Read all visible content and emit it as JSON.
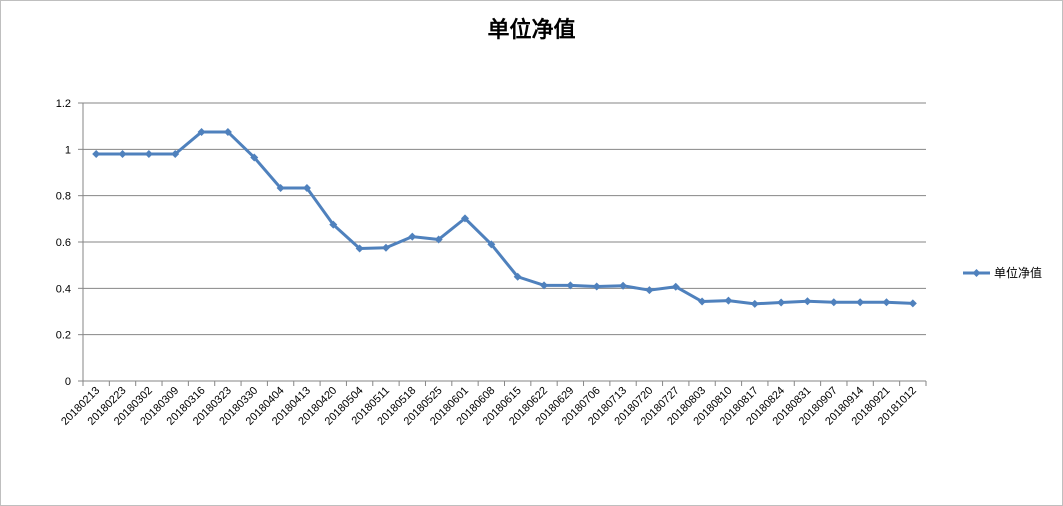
{
  "chart_data": {
    "type": "line",
    "title": "单位净值",
    "xlabel": "",
    "ylabel": "",
    "ylim": [
      0,
      1.2
    ],
    "yticks": [
      "0",
      "0.2",
      "0.4",
      "0.6",
      "0.8",
      "1",
      "1.2"
    ],
    "grid": true,
    "legend_position": "right",
    "categories": [
      "20180213",
      "20180223",
      "20180302",
      "20180309",
      "20180316",
      "20180323",
      "20180330",
      "20180404",
      "20180413",
      "20180420",
      "20180504",
      "20180511",
      "20180518",
      "20180525",
      "20180601",
      "20180608",
      "20180615",
      "20180622",
      "20180629",
      "20180706",
      "20180713",
      "20180720",
      "20180727",
      "20180803",
      "20180810",
      "20180817",
      "20180824",
      "20180831",
      "20180907",
      "20180914",
      "20180921",
      "20181012"
    ],
    "series": [
      {
        "name": "单位净值",
        "color": "#4f81bd",
        "values": [
          0.98,
          0.98,
          0.98,
          0.98,
          1.075,
          1.075,
          0.965,
          0.833,
          0.833,
          0.675,
          0.572,
          0.575,
          0.623,
          0.611,
          0.702,
          0.59,
          0.45,
          0.413,
          0.413,
          0.408,
          0.411,
          0.392,
          0.407,
          0.343,
          0.347,
          0.333,
          0.339,
          0.344,
          0.34,
          0.34,
          0.34,
          0.335
        ]
      }
    ]
  }
}
